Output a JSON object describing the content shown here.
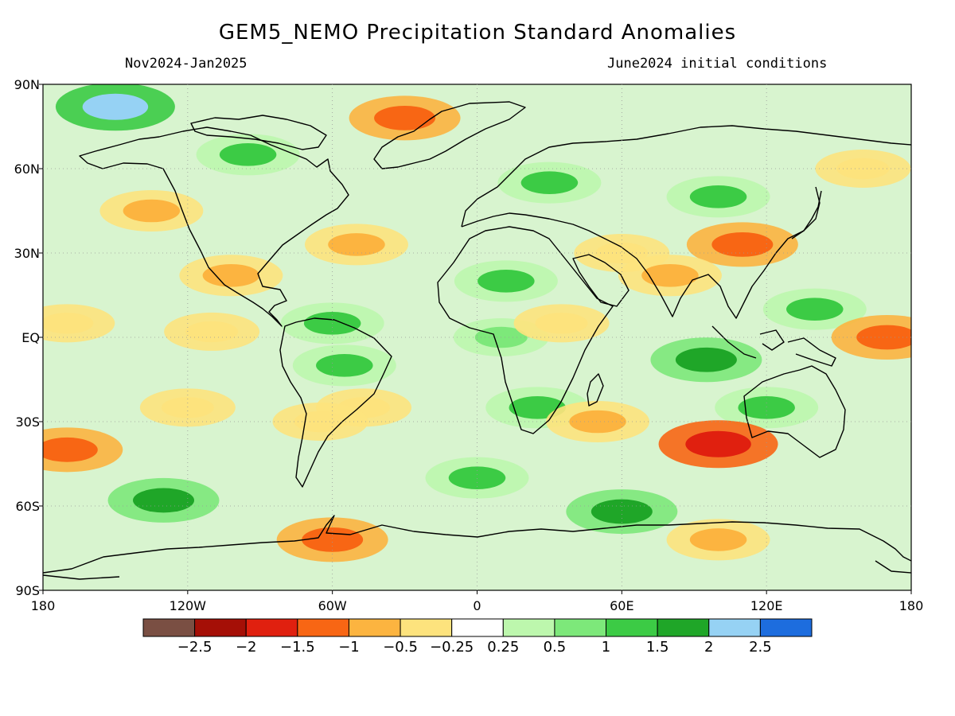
{
  "header": {
    "title": "GEM5_NEMO Precipitation Standard Anomalies",
    "period": "Nov2024-Jan2025",
    "initial_conditions": "June2024 initial conditions"
  },
  "chart_data": {
    "type": "heatmap",
    "title": "GEM5_NEMO Precipitation Standard Anomalies",
    "projection": "equirectangular",
    "xlim": [
      -180,
      180
    ],
    "ylim": [
      -90,
      90
    ],
    "lat_ticks": [
      {
        "value": 90,
        "label": "90N"
      },
      {
        "value": 60,
        "label": "60N"
      },
      {
        "value": 30,
        "label": "30N"
      },
      {
        "value": 0,
        "label": "EQ"
      },
      {
        "value": -30,
        "label": "30S"
      },
      {
        "value": -60,
        "label": "60S"
      },
      {
        "value": -90,
        "label": "90S"
      }
    ],
    "lon_ticks": [
      {
        "value": -180,
        "label": "180"
      },
      {
        "value": -120,
        "label": "120W"
      },
      {
        "value": -60,
        "label": "60W"
      },
      {
        "value": 0,
        "label": "0"
      },
      {
        "value": 60,
        "label": "60E"
      },
      {
        "value": 120,
        "label": "120E"
      },
      {
        "value": 180,
        "label": "180"
      }
    ],
    "colorbar": {
      "colors": [
        "#7a4f43",
        "#a50f06",
        "#e0200f",
        "#f86614",
        "#fcb440",
        "#fde37d",
        "#ffffff",
        "#bdf7ad",
        "#7de87a",
        "#3ccb45",
        "#1fa628",
        "#96d2f4",
        "#1d6dde"
      ],
      "labels": [
        "-2.5",
        "-2",
        "-1.5",
        "-1",
        "-0.5",
        "-0.25",
        "0.25",
        "0.5",
        "1",
        "1.5",
        "2",
        "2.5"
      ]
    },
    "anomaly_features": [
      {
        "lon": -150,
        "lat": 82,
        "value": 2.0
      },
      {
        "lon": -30,
        "lat": 78,
        "value": -1.5
      },
      {
        "lon": -135,
        "lat": 45,
        "value": -1.0
      },
      {
        "lon": -50,
        "lat": 33,
        "value": -1.0
      },
      {
        "lon": -102,
        "lat": 22,
        "value": -1.0
      },
      {
        "lon": -110,
        "lat": 2,
        "value": -0.5
      },
      {
        "lon": -170,
        "lat": 5,
        "value": -0.5
      },
      {
        "lon": -60,
        "lat": 5,
        "value": 1.0
      },
      {
        "lon": -55,
        "lat": -10,
        "value": 1.0
      },
      {
        "lon": -47,
        "lat": -25,
        "value": -0.5
      },
      {
        "lon": -65,
        "lat": -30,
        "value": -0.5
      },
      {
        "lon": -120,
        "lat": -25,
        "value": -0.5
      },
      {
        "lon": -170,
        "lat": -40,
        "value": -1.5
      },
      {
        "lon": -60,
        "lat": -72,
        "value": -1.5
      },
      {
        "lon": -130,
        "lat": -58,
        "value": 1.5
      },
      {
        "lon": 12,
        "lat": 20,
        "value": 1.0
      },
      {
        "lon": 10,
        "lat": 0,
        "value": 0.5
      },
      {
        "lon": 25,
        "lat": -25,
        "value": 1.0
      },
      {
        "lon": 35,
        "lat": 5,
        "value": -0.5
      },
      {
        "lon": 60,
        "lat": 30,
        "value": -0.5
      },
      {
        "lon": 110,
        "lat": 33,
        "value": -1.5
      },
      {
        "lon": 80,
        "lat": 22,
        "value": -1.0
      },
      {
        "lon": 100,
        "lat": 50,
        "value": 1.0
      },
      {
        "lon": 140,
        "lat": 10,
        "value": 1.0
      },
      {
        "lon": 170,
        "lat": 0,
        "value": -1.5
      },
      {
        "lon": 95,
        "lat": -8,
        "value": 1.5
      },
      {
        "lon": 120,
        "lat": -25,
        "value": 1.0
      },
      {
        "lon": 100,
        "lat": -38,
        "value": -2.0
      },
      {
        "lon": 50,
        "lat": -30,
        "value": -1.0
      },
      {
        "lon": 0,
        "lat": -50,
        "value": 1.0
      },
      {
        "lon": 60,
        "lat": -62,
        "value": 1.5
      },
      {
        "lon": 100,
        "lat": -72,
        "value": -1.0
      },
      {
        "lon": 160,
        "lat": 60,
        "value": -0.5
      },
      {
        "lon": 30,
        "lat": 55,
        "value": 1.0
      },
      {
        "lon": -95,
        "lat": 65,
        "value": 1.0
      }
    ]
  }
}
